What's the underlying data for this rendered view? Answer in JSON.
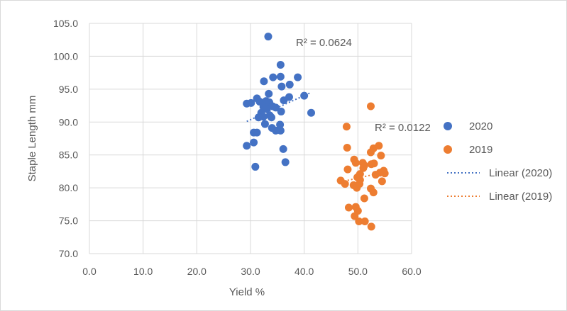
{
  "chart_data": {
    "type": "scatter",
    "xlabel": "Yield %",
    "ylabel": "Staple Length mm",
    "xlim": [
      0,
      60
    ],
    "ylim": [
      70,
      105
    ],
    "xticks": [
      "0.0",
      "10.0",
      "20.0",
      "30.0",
      "40.0",
      "50.0",
      "60.0"
    ],
    "yticks": [
      "70.0",
      "75.0",
      "80.0",
      "85.0",
      "90.0",
      "95.0",
      "100.0",
      "105.0"
    ],
    "grid": true,
    "legend_position": "right",
    "series": [
      {
        "name": "2020",
        "color": "#4472c4",
        "points": [
          [
            33.3,
            103.0
          ],
          [
            35.6,
            98.7
          ],
          [
            34.2,
            96.8
          ],
          [
            35.6,
            96.9
          ],
          [
            38.8,
            96.8
          ],
          [
            32.5,
            96.2
          ],
          [
            35.8,
            95.4
          ],
          [
            37.3,
            95.7
          ],
          [
            33.4,
            94.3
          ],
          [
            31.2,
            93.6
          ],
          [
            40.0,
            94.0
          ],
          [
            37.2,
            93.8
          ],
          [
            30.1,
            92.9
          ],
          [
            29.3,
            92.8
          ],
          [
            31.7,
            93.1
          ],
          [
            32.9,
            93.2
          ],
          [
            33.5,
            93.0
          ],
          [
            36.2,
            93.3
          ],
          [
            32.4,
            92.3
          ],
          [
            33.0,
            92.0
          ],
          [
            34.1,
            92.4
          ],
          [
            34.7,
            92.2
          ],
          [
            32.0,
            91.4
          ],
          [
            33.6,
            91.0
          ],
          [
            35.7,
            91.6
          ],
          [
            31.5,
            90.7
          ],
          [
            32.4,
            90.8
          ],
          [
            33.9,
            90.7
          ],
          [
            41.3,
            91.4
          ],
          [
            32.7,
            89.7
          ],
          [
            35.5,
            89.6
          ],
          [
            34.0,
            89.1
          ],
          [
            34.7,
            88.7
          ],
          [
            35.6,
            88.7
          ],
          [
            31.2,
            88.4
          ],
          [
            30.6,
            88.4
          ],
          [
            30.6,
            86.9
          ],
          [
            29.3,
            86.4
          ],
          [
            36.1,
            85.9
          ],
          [
            36.5,
            83.9
          ],
          [
            30.9,
            83.2
          ]
        ],
        "trendline": {
          "name": "Linear (2020)",
          "x1": 29.3,
          "y1": 90.1,
          "x2": 41.3,
          "y2": 94.5,
          "r2_label": "R² = 0.0624"
        }
      },
      {
        "name": "2019",
        "color": "#ed7d31",
        "points": [
          [
            52.4,
            92.4
          ],
          [
            47.9,
            89.3
          ],
          [
            48.0,
            86.1
          ],
          [
            52.9,
            86.0
          ],
          [
            53.9,
            86.4
          ],
          [
            52.4,
            85.4
          ],
          [
            54.3,
            84.9
          ],
          [
            49.3,
            84.3
          ],
          [
            49.6,
            83.8
          ],
          [
            50.9,
            83.8
          ],
          [
            51.2,
            83.4
          ],
          [
            52.5,
            83.6
          ],
          [
            53.0,
            83.7
          ],
          [
            51.0,
            83.0
          ],
          [
            48.1,
            82.8
          ],
          [
            50.4,
            82.1
          ],
          [
            53.3,
            82.0
          ],
          [
            54.1,
            82.3
          ],
          [
            54.8,
            82.6
          ],
          [
            55.0,
            82.2
          ],
          [
            49.9,
            81.6
          ],
          [
            50.4,
            81.2
          ],
          [
            46.8,
            81.1
          ],
          [
            47.6,
            80.6
          ],
          [
            49.2,
            80.4
          ],
          [
            49.8,
            80.0
          ],
          [
            54.5,
            81.0
          ],
          [
            52.4,
            79.9
          ],
          [
            52.9,
            79.3
          ],
          [
            51.2,
            78.4
          ],
          [
            48.3,
            77.0
          ],
          [
            49.6,
            77.1
          ],
          [
            50.0,
            76.5
          ],
          [
            49.4,
            75.7
          ],
          [
            50.2,
            74.9
          ],
          [
            51.3,
            74.9
          ],
          [
            52.5,
            74.1
          ],
          [
            50.3,
            80.6
          ]
        ],
        "trendline": {
          "name": "Linear (2019)",
          "x1": 46.8,
          "y1": 80.9,
          "x2": 55.0,
          "y2": 82.4,
          "r2_label": "R² = 0.0122"
        }
      }
    ]
  }
}
